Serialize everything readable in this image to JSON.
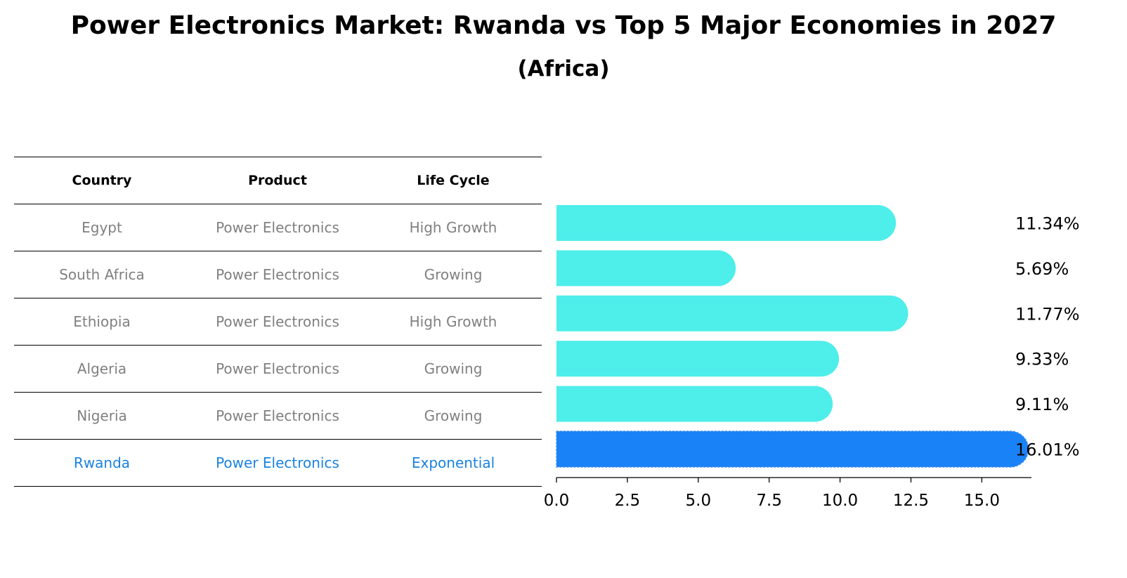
{
  "title": "Power Electronics Market: Rwanda vs Top 5 Major Economies in 2027",
  "subtitle": "(Africa)",
  "table": {
    "headers": [
      "Country",
      "Product",
      "Life Cycle"
    ],
    "rows": [
      [
        "Egypt",
        "Power Electronics",
        "High Growth"
      ],
      [
        "South Africa",
        "Power Electronics",
        "Growing"
      ],
      [
        "Ethiopia",
        "Power Electronics",
        "High Growth"
      ],
      [
        "Algeria",
        "Power Electronics",
        "Growing"
      ],
      [
        "Nigeria",
        "Power Electronics",
        "Growing"
      ],
      [
        "Rwanda",
        "Power Electronics",
        "Exponential"
      ]
    ]
  },
  "colors": {
    "bar": "#4eeeea",
    "highlight": "#1a82f7",
    "highlight_text": "#1a82e0",
    "muted_text": "#808080"
  },
  "chart_data": {
    "type": "bar",
    "orientation": "horizontal",
    "categories": [
      "Egypt",
      "South Africa",
      "Ethiopia",
      "Algeria",
      "Nigeria",
      "Rwanda"
    ],
    "values": [
      11.34,
      5.69,
      11.77,
      9.33,
      9.11,
      16.01
    ],
    "value_labels": [
      "11.34%",
      "5.69%",
      "11.77%",
      "9.33%",
      "9.11%",
      "16.01%"
    ],
    "highlight": "Rwanda",
    "xlim": [
      0,
      16.75
    ],
    "xticks": [
      0.0,
      2.5,
      5.0,
      7.5,
      10.0,
      12.5,
      15.0
    ],
    "xtick_labels": [
      "0.0",
      "2.5",
      "5.0",
      "7.5",
      "10.0",
      "12.5",
      "15.0"
    ],
    "xlabel": "",
    "ylabel": "",
    "grid": false
  }
}
